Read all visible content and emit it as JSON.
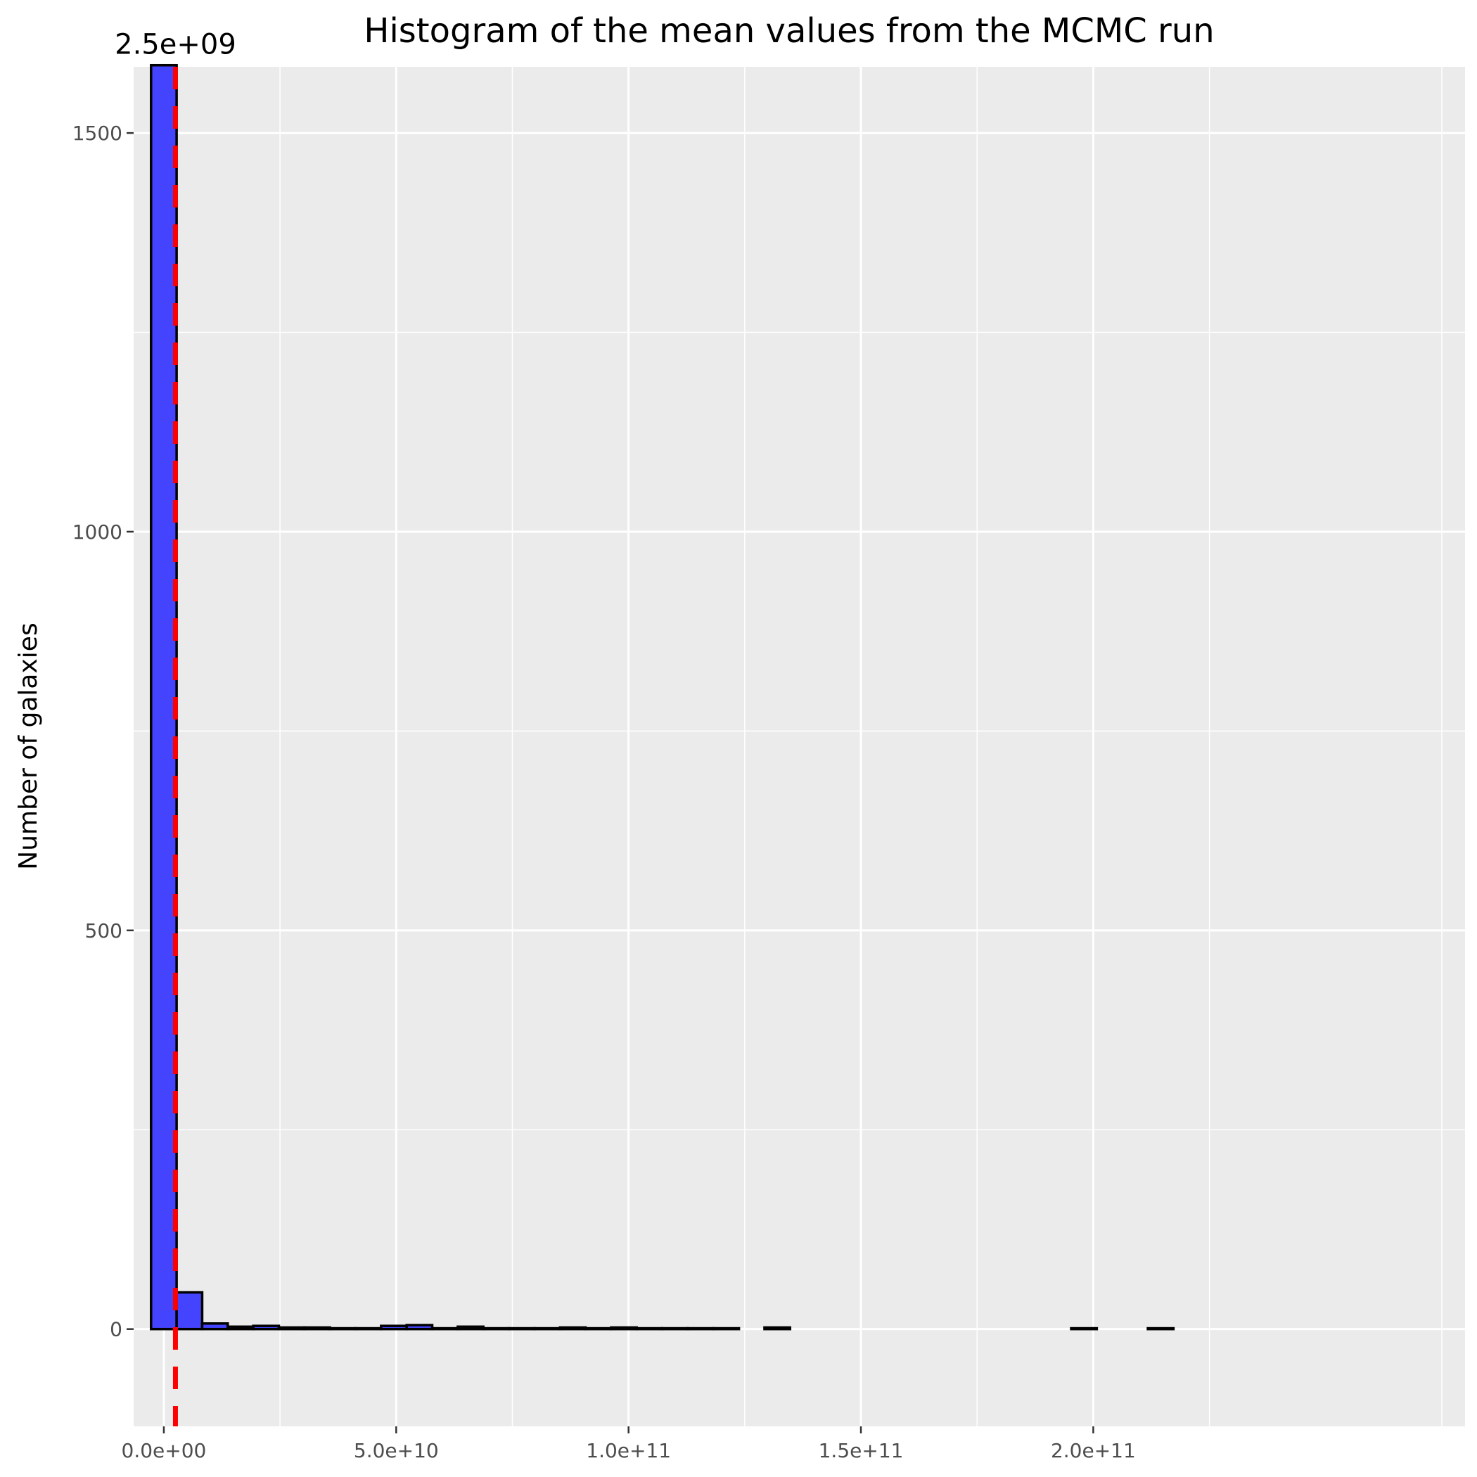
{
  "chart_data": {
    "type": "bar",
    "title": "Histogram of the mean values from the MCMC run",
    "xlabel": "",
    "ylabel": "Number of galaxies",
    "xlim": [
      -6500000000.0,
      280000000000.0
    ],
    "ylim": [
      -122,
      1583
    ],
    "x_ticks": [
      0,
      50000000000.0,
      100000000000.0,
      150000000000.0,
      200000000000.0
    ],
    "x_tick_labels": [
      "0.0e+00",
      "5.0e+10",
      "1.0e+11",
      "1.5e+11",
      "2.0e+11"
    ],
    "y_ticks": [
      0,
      500,
      1000,
      1500
    ],
    "y_tick_labels": [
      "0",
      "500",
      "1000",
      "1500"
    ],
    "grid": true,
    "bin_width": 5500000000.0,
    "bins": [
      {
        "x": 0,
        "count": 1585
      },
      {
        "x": 5500000000.0,
        "count": 46
      },
      {
        "x": 11000000000.0,
        "count": 7
      },
      {
        "x": 16500000000.0,
        "count": 3
      },
      {
        "x": 22000000000.0,
        "count": 4
      },
      {
        "x": 27500000000.0,
        "count": 2
      },
      {
        "x": 33000000000.0,
        "count": 2
      },
      {
        "x": 38500000000.0,
        "count": 1
      },
      {
        "x": 44000000000.0,
        "count": 1
      },
      {
        "x": 49500000000.0,
        "count": 4
      },
      {
        "x": 55000000000.0,
        "count": 5
      },
      {
        "x": 60500000000.0,
        "count": 1
      },
      {
        "x": 66000000000.0,
        "count": 3
      },
      {
        "x": 71500000000.0,
        "count": 1
      },
      {
        "x": 77000000000.0,
        "count": 1
      },
      {
        "x": 82500000000.0,
        "count": 1
      },
      {
        "x": 88000000000.0,
        "count": 2
      },
      {
        "x": 93500000000.0,
        "count": 1
      },
      {
        "x": 99000000000.0,
        "count": 2
      },
      {
        "x": 104500000000.0,
        "count": 1
      },
      {
        "x": 110000000000.0,
        "count": 1
      },
      {
        "x": 115500000000.0,
        "count": 1
      },
      {
        "x": 121000000000.0,
        "count": 1
      },
      {
        "x": 126500000000.0,
        "count": 0
      },
      {
        "x": 132000000000.0,
        "count": 2
      },
      {
        "x": 137500000000.0,
        "count": 0
      },
      {
        "x": 143000000000.0,
        "count": 0
      },
      {
        "x": 148500000000.0,
        "count": 0
      },
      {
        "x": 154000000000.0,
        "count": 0
      },
      {
        "x": 159500000000.0,
        "count": 0
      },
      {
        "x": 165000000000.0,
        "count": 0
      },
      {
        "x": 170500000000.0,
        "count": 0
      },
      {
        "x": 176000000000.0,
        "count": 0
      },
      {
        "x": 181500000000.0,
        "count": 0
      },
      {
        "x": 187000000000.0,
        "count": 0
      },
      {
        "x": 192500000000.0,
        "count": 0
      },
      {
        "x": 198000000000.0,
        "count": 1
      },
      {
        "x": 203500000000.0,
        "count": 0
      },
      {
        "x": 209000000000.0,
        "count": 0
      },
      {
        "x": 214500000000.0,
        "count": 1
      }
    ],
    "mean_line": {
      "x": 2500000000.0,
      "color": "#ff0000",
      "label": "2.5e+09"
    },
    "colors": {
      "bar_fill": "#4444ff",
      "bar_stroke": "#000000",
      "panel_bg": "#ebebeb",
      "grid": "#ffffff"
    }
  }
}
